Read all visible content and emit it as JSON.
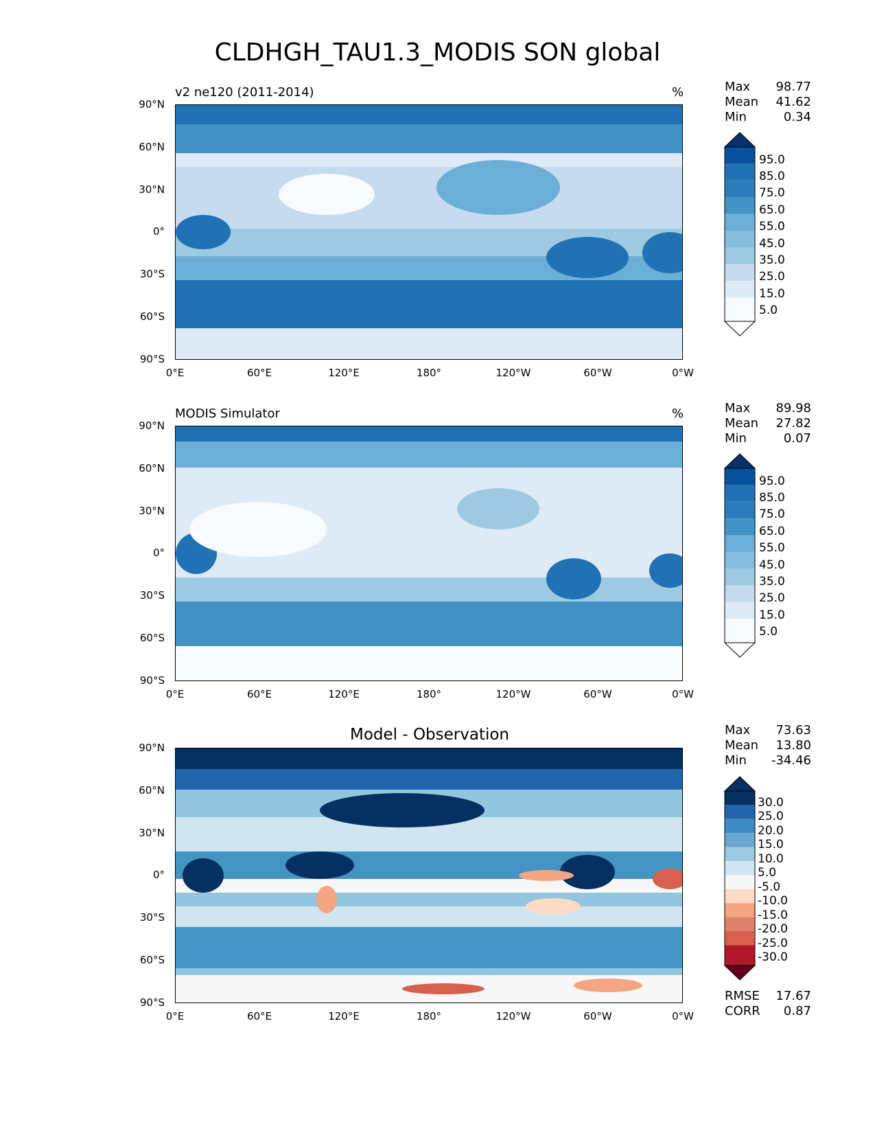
{
  "title": "CLDHGH_TAU1.3_MODIS SON global",
  "xticks": [
    "0°E",
    "60°E",
    "120°E",
    "180°",
    "120°W",
    "60°W",
    "0°W"
  ],
  "yticks": [
    "90°N",
    "60°N",
    "30°N",
    "0°",
    "30°S",
    "60°S",
    "90°S"
  ],
  "panels": [
    {
      "title": "v2 ne120 (2011-2014)",
      "units": "%",
      "stats": {
        "max_label": "Max",
        "max": "98.77",
        "mean_label": "Mean",
        "mean": "41.62",
        "min_label": "Min",
        "min": "0.34"
      },
      "colorbar": [
        "95.0",
        "85.0",
        "75.0",
        "65.0",
        "55.0",
        "45.0",
        "35.0",
        "25.0",
        "15.0",
        "5.0"
      ]
    },
    {
      "title": "MODIS Simulator",
      "units": "%",
      "stats": {
        "max_label": "Max",
        "max": "89.98",
        "mean_label": "Mean",
        "mean": "27.82",
        "min_label": "Min",
        "min": "0.07"
      },
      "colorbar": [
        "95.0",
        "85.0",
        "75.0",
        "65.0",
        "55.0",
        "45.0",
        "35.0",
        "25.0",
        "15.0",
        "5.0"
      ]
    },
    {
      "title": "Model - Observation",
      "units": "",
      "stats": {
        "max_label": "Max",
        "max": "73.63",
        "mean_label": "Mean",
        "mean": "13.80",
        "min_label": "Min",
        "min": "-34.46"
      },
      "colorbar": [
        "30.0",
        "25.0",
        "20.0",
        "15.0",
        "10.0",
        "5.0",
        "-5.0",
        "-10.0",
        "-15.0",
        "-20.0",
        "-25.0",
        "-30.0"
      ],
      "rmse_label": "RMSE",
      "rmse": "17.67",
      "corr_label": "CORR",
      "corr": "0.87"
    }
  ],
  "colors": {
    "blues": [
      "#f7fbff",
      "#deebf7",
      "#c6dbef",
      "#9ecae1",
      "#6baed6",
      "#4292c6",
      "#2171b5",
      "#08519c",
      "#08306b"
    ],
    "diff_pos": [
      "#f7f7f7",
      "#d1e5f0",
      "#92c5de",
      "#4393c3",
      "#2166ac",
      "#053061"
    ],
    "diff_neg": [
      "#fddbc7",
      "#f4a582",
      "#d6604d",
      "#b2182b",
      "#67001f"
    ]
  }
}
